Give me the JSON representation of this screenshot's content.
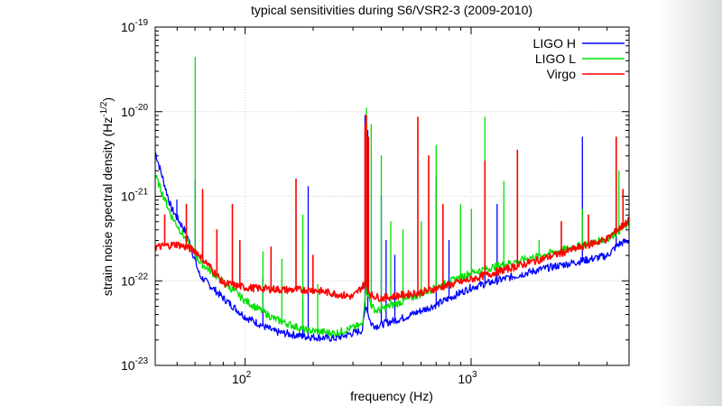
{
  "chart_data": {
    "type": "line",
    "title": "typical sensitivities during S6/VSR2-3 (2009-2010)",
    "xlabel": "frequency (Hz)",
    "ylabel": "strain noise spectral density (Hz",
    "ylabel_sup": "-1/2",
    "ylabel_end": ")",
    "xscale": "log",
    "yscale": "log",
    "xlim": [
      40,
      5000
    ],
    "ylim": [
      1e-23,
      1e-19
    ],
    "grid": true,
    "legend_position": "top-right",
    "x_ticks": [
      {
        "base": "10",
        "exp": "2",
        "value": 100
      },
      {
        "base": "10",
        "exp": "3",
        "value": 1000
      }
    ],
    "y_ticks": [
      {
        "base": "10",
        "exp": "-19",
        "value": 1e-19
      },
      {
        "base": "10",
        "exp": "-20",
        "value": 1e-20
      },
      {
        "base": "10",
        "exp": "-21",
        "value": 1e-21
      },
      {
        "base": "10",
        "exp": "-22",
        "value": 1e-22
      },
      {
        "base": "10",
        "exp": "-23",
        "value": 1e-23
      }
    ],
    "series": [
      {
        "name": "LIGO H",
        "color": "#0000ff",
        "baseline": [
          [
            40,
            3.2e-21
          ],
          [
            47,
            7e-22
          ],
          [
            55,
            3.5e-22
          ],
          [
            63,
            1.1e-22
          ],
          [
            80,
            6e-23
          ],
          [
            100,
            3.6e-23
          ],
          [
            135,
            2.4e-23
          ],
          [
            185,
            2.1e-23
          ],
          [
            250,
            2e-23
          ],
          [
            330,
            2.5e-23
          ],
          [
            342,
            5e-23
          ],
          [
            360,
            3e-23
          ],
          [
            380,
            2.8e-23
          ],
          [
            500,
            3.5e-23
          ],
          [
            700,
            5e-23
          ],
          [
            1000,
            8e-23
          ],
          [
            2000,
            1.3e-22
          ],
          [
            4000,
            1.9e-22
          ],
          [
            4500,
            2.6e-22
          ],
          [
            5000,
            2.9e-22
          ]
        ],
        "peaks": [
          [
            50,
            9e-22
          ],
          [
            60,
            1.6e-21
          ],
          [
            120,
            1.1e-22
          ],
          [
            180,
            6e-23
          ],
          [
            190,
            1.3e-21
          ],
          [
            340,
            9e-21
          ],
          [
            350,
            6e-21
          ],
          [
            400,
            1e-21
          ],
          [
            420,
            3e-22
          ],
          [
            460,
            2e-22
          ],
          [
            700,
            1.7e-21
          ],
          [
            800,
            3e-22
          ],
          [
            1150,
            5e-22
          ],
          [
            1300,
            8e-22
          ],
          [
            3100,
            5e-21
          ],
          [
            4400,
            6e-22
          ]
        ]
      },
      {
        "name": "LIGO L",
        "color": "#00e000",
        "baseline": [
          [
            40,
            1.7e-21
          ],
          [
            47,
            5.7e-22
          ],
          [
            63,
            1.6e-22
          ],
          [
            100,
            5.6e-23
          ],
          [
            135,
            3.4e-23
          ],
          [
            185,
            2.5e-23
          ],
          [
            250,
            2.3e-23
          ],
          [
            330,
            2.9e-23
          ],
          [
            342,
            8e-23
          ],
          [
            360,
            5e-23
          ],
          [
            380,
            4.2e-23
          ],
          [
            500,
            5.5e-23
          ],
          [
            700,
            8e-23
          ],
          [
            1000,
            1.2e-22
          ],
          [
            2000,
            1.9e-22
          ],
          [
            4000,
            3e-22
          ],
          [
            5000,
            4.5e-22
          ]
        ],
        "peaks": [
          [
            45,
            9e-22
          ],
          [
            60,
            4.4e-20
          ],
          [
            120,
            2.2e-22
          ],
          [
            145,
            1.8e-22
          ],
          [
            180,
            6e-22
          ],
          [
            210,
            9e-23
          ],
          [
            345,
            1.1e-20
          ],
          [
            360,
            7e-21
          ],
          [
            400,
            3e-21
          ],
          [
            440,
            5e-22
          ],
          [
            500,
            4e-22
          ],
          [
            600,
            5e-22
          ],
          [
            700,
            4e-21
          ],
          [
            900,
            8e-22
          ],
          [
            1000,
            7e-22
          ],
          [
            1150,
            8.6e-21
          ],
          [
            1400,
            1.5e-21
          ],
          [
            2000,
            3e-22
          ],
          [
            3100,
            7e-22
          ],
          [
            4500,
            2e-21
          ]
        ]
      },
      {
        "name": "Virgo",
        "color": "#ff0000",
        "baseline": [
          [
            40,
            2.4e-22
          ],
          [
            50,
            2.6e-22
          ],
          [
            60,
            2.2e-22
          ],
          [
            70,
            1.4e-22
          ],
          [
            80,
            9e-23
          ],
          [
            100,
            8e-23
          ],
          [
            150,
            7.5e-23
          ],
          [
            200,
            7.5e-23
          ],
          [
            300,
            6.2e-23
          ],
          [
            340,
            9e-23
          ],
          [
            360,
            6.5e-23
          ],
          [
            400,
            6e-23
          ],
          [
            600,
            7e-23
          ],
          [
            1000,
            1e-22
          ],
          [
            2000,
            1.7e-22
          ],
          [
            4000,
            3e-22
          ],
          [
            5000,
            5e-22
          ]
        ],
        "peaks": [
          [
            44,
            6e-22
          ],
          [
            55,
            8e-22
          ],
          [
            65,
            1.2e-21
          ],
          [
            75,
            4e-22
          ],
          [
            88,
            8e-22
          ],
          [
            95,
            3e-22
          ],
          [
            130,
            2.5e-22
          ],
          [
            168,
            1.6e-21
          ],
          [
            200,
            2e-22
          ],
          [
            340,
            7e-21
          ],
          [
            345,
            9e-21
          ],
          [
            352,
            5e-21
          ],
          [
            580,
            8.6e-21
          ],
          [
            650,
            3e-21
          ],
          [
            750,
            8e-22
          ],
          [
            1150,
            2.6e-21
          ],
          [
            1600,
            3.5e-21
          ],
          [
            2500,
            5e-22
          ],
          [
            3300,
            6e-22
          ],
          [
            4400,
            5e-21
          ],
          [
            4700,
            1.2e-21
          ]
        ]
      }
    ]
  }
}
